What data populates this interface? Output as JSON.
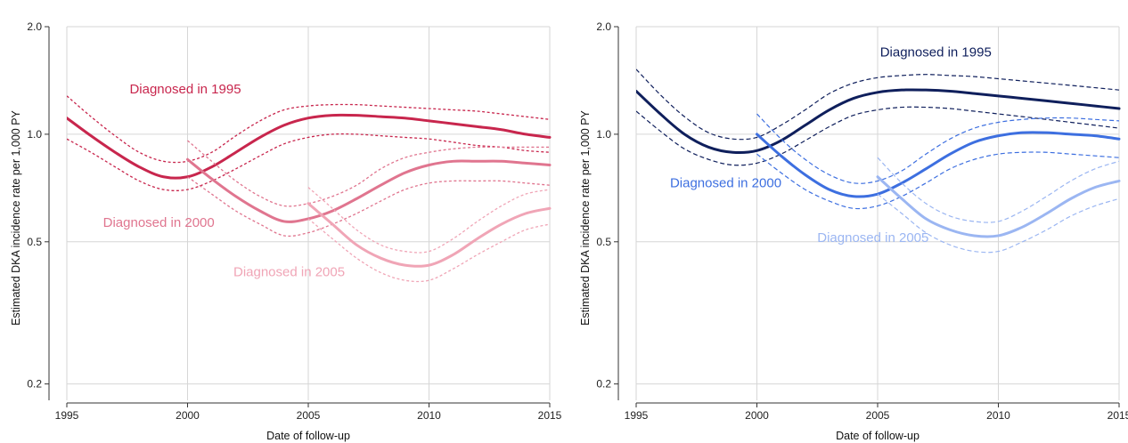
{
  "chart_data": [
    {
      "type": "line",
      "title": "",
      "xlabel": "Date of follow-up",
      "ylabel": "Estimated DKA incidence rate per 1,000 PY",
      "xlim": [
        1995,
        2015
      ],
      "ylim": [
        0.18,
        2.0
      ],
      "yscale": "log",
      "xticks": [
        1995,
        2000,
        2005,
        2010,
        2015
      ],
      "xtick_labels": [
        "1995",
        "2000",
        "2005",
        "2010",
        "2015"
      ],
      "yticks": [
        0.2,
        0.5,
        1.0,
        2.0
      ],
      "ytick_labels": [
        "0.2",
        "0.5",
        "1.0",
        "2.0"
      ],
      "grid": true,
      "series": [
        {
          "name": "Diagnosed in 1995",
          "color": "#c8264d",
          "ci_style": "dotted",
          "label_at": [
            1997.6,
            1.3
          ],
          "x": [
            1995,
            1996,
            1997,
            1998,
            1999,
            2000,
            2001,
            2002,
            2003,
            2004,
            2005,
            2006,
            2007,
            2008,
            2009,
            2010,
            2011,
            2012,
            2013,
            2014,
            2015
          ],
          "y": [
            1.11,
            0.99,
            0.89,
            0.81,
            0.76,
            0.76,
            0.81,
            0.89,
            0.98,
            1.06,
            1.11,
            1.13,
            1.13,
            1.12,
            1.11,
            1.09,
            1.07,
            1.05,
            1.03,
            1.0,
            0.98
          ],
          "lower": [
            0.97,
            0.89,
            0.81,
            0.74,
            0.7,
            0.7,
            0.74,
            0.8,
            0.87,
            0.94,
            0.98,
            1.0,
            1.0,
            0.99,
            0.98,
            0.97,
            0.95,
            0.93,
            0.92,
            0.9,
            0.89
          ],
          "upper": [
            1.28,
            1.12,
            0.99,
            0.89,
            0.84,
            0.84,
            0.89,
            0.99,
            1.09,
            1.17,
            1.2,
            1.21,
            1.21,
            1.2,
            1.19,
            1.18,
            1.17,
            1.16,
            1.14,
            1.12,
            1.1
          ]
        },
        {
          "name": "Diagnosed in 2000",
          "color": "#e0758f",
          "ci_style": "dotted",
          "label_at": [
            1996.5,
            0.55
          ],
          "x": [
            2000,
            2001,
            2002,
            2003,
            2004,
            2005,
            2006,
            2007,
            2008,
            2009,
            2010,
            2011,
            2012,
            2013,
            2014,
            2015
          ],
          "y": [
            0.85,
            0.75,
            0.67,
            0.61,
            0.57,
            0.58,
            0.61,
            0.66,
            0.72,
            0.78,
            0.82,
            0.84,
            0.84,
            0.84,
            0.83,
            0.82
          ],
          "lower": [
            0.76,
            0.68,
            0.61,
            0.56,
            0.52,
            0.53,
            0.56,
            0.6,
            0.65,
            0.7,
            0.73,
            0.74,
            0.74,
            0.74,
            0.73,
            0.72
          ],
          "upper": [
            0.96,
            0.84,
            0.74,
            0.67,
            0.63,
            0.64,
            0.67,
            0.72,
            0.8,
            0.86,
            0.89,
            0.91,
            0.92,
            0.92,
            0.92,
            0.92
          ]
        },
        {
          "name": "Diagnosed in 2005",
          "color": "#f0a5b6",
          "ci_style": "dotted",
          "label_at": [
            2001.9,
            0.4
          ],
          "x": [
            2005,
            2006,
            2007,
            2008,
            2009,
            2010,
            2011,
            2012,
            2013,
            2014,
            2015
          ],
          "y": [
            0.64,
            0.56,
            0.49,
            0.45,
            0.43,
            0.43,
            0.46,
            0.51,
            0.56,
            0.6,
            0.62
          ],
          "lower": [
            0.58,
            0.51,
            0.45,
            0.41,
            0.39,
            0.39,
            0.42,
            0.46,
            0.5,
            0.54,
            0.56
          ],
          "upper": [
            0.71,
            0.62,
            0.54,
            0.49,
            0.47,
            0.47,
            0.51,
            0.57,
            0.63,
            0.68,
            0.7
          ]
        }
      ]
    },
    {
      "type": "line",
      "title": "",
      "xlabel": "Date of follow-up",
      "ylabel": "Estimated DKA incidence rate per 1,000 PY",
      "xlim": [
        1995,
        2015
      ],
      "ylim": [
        0.18,
        2.0
      ],
      "yscale": "log",
      "xticks": [
        1995,
        2000,
        2005,
        2010,
        2015
      ],
      "xtick_labels": [
        "1995",
        "2000",
        "2005",
        "2010",
        "2015"
      ],
      "yticks": [
        0.2,
        0.5,
        1.0,
        2.0
      ],
      "ytick_labels": [
        "0.2",
        "0.5",
        "1.0",
        "2.0"
      ],
      "grid": true,
      "series": [
        {
          "name": "Diagnosed in 1995",
          "color": "#0f1f5c",
          "ci_style": "dashed",
          "label_at": [
            2005.1,
            1.65
          ],
          "x": [
            1995,
            1996,
            1997,
            1998,
            1999,
            2000,
            2001,
            2002,
            2003,
            2004,
            2005,
            2006,
            2007,
            2008,
            2009,
            2010,
            2011,
            2012,
            2013,
            2014,
            2015
          ],
          "y": [
            1.32,
            1.14,
            1.0,
            0.92,
            0.89,
            0.9,
            0.96,
            1.06,
            1.17,
            1.26,
            1.31,
            1.33,
            1.33,
            1.32,
            1.3,
            1.28,
            1.26,
            1.24,
            1.22,
            1.2,
            1.18
          ],
          "lower": [
            1.16,
            1.02,
            0.91,
            0.85,
            0.82,
            0.83,
            0.88,
            0.96,
            1.05,
            1.13,
            1.17,
            1.19,
            1.19,
            1.18,
            1.16,
            1.14,
            1.12,
            1.1,
            1.08,
            1.06,
            1.04
          ],
          "upper": [
            1.52,
            1.29,
            1.12,
            1.01,
            0.97,
            0.98,
            1.06,
            1.17,
            1.3,
            1.39,
            1.44,
            1.46,
            1.47,
            1.46,
            1.45,
            1.43,
            1.41,
            1.39,
            1.37,
            1.35,
            1.33
          ]
        },
        {
          "name": "Diagnosed in 2000",
          "color": "#3d6fe0",
          "ci_style": "dashed",
          "label_at": [
            1996.4,
            0.71
          ],
          "x": [
            2000,
            2001,
            2002,
            2003,
            2004,
            2005,
            2006,
            2007,
            2008,
            2009,
            2010,
            2011,
            2012,
            2013,
            2014,
            2015
          ],
          "y": [
            1.0,
            0.87,
            0.77,
            0.7,
            0.67,
            0.68,
            0.73,
            0.8,
            0.88,
            0.95,
            0.99,
            1.01,
            1.01,
            1.0,
            0.99,
            0.97
          ],
          "lower": [
            0.88,
            0.78,
            0.7,
            0.65,
            0.62,
            0.63,
            0.67,
            0.73,
            0.8,
            0.85,
            0.88,
            0.89,
            0.89,
            0.88,
            0.87,
            0.86
          ],
          "upper": [
            1.14,
            0.97,
            0.85,
            0.77,
            0.73,
            0.74,
            0.79,
            0.88,
            0.97,
            1.04,
            1.08,
            1.1,
            1.11,
            1.11,
            1.1,
            1.09
          ]
        },
        {
          "name": "Diagnosed in 2005",
          "color": "#9bb6f2",
          "ci_style": "dashed",
          "label_at": [
            2002.5,
            0.5
          ],
          "x": [
            2005,
            2006,
            2007,
            2008,
            2009,
            2010,
            2011,
            2012,
            2013,
            2014,
            2015
          ],
          "y": [
            0.76,
            0.66,
            0.58,
            0.54,
            0.52,
            0.52,
            0.55,
            0.6,
            0.66,
            0.71,
            0.74
          ],
          "lower": [
            0.68,
            0.6,
            0.53,
            0.49,
            0.47,
            0.47,
            0.5,
            0.54,
            0.59,
            0.63,
            0.66
          ],
          "upper": [
            0.86,
            0.73,
            0.64,
            0.59,
            0.57,
            0.57,
            0.61,
            0.67,
            0.74,
            0.8,
            0.84
          ]
        }
      ]
    }
  ]
}
